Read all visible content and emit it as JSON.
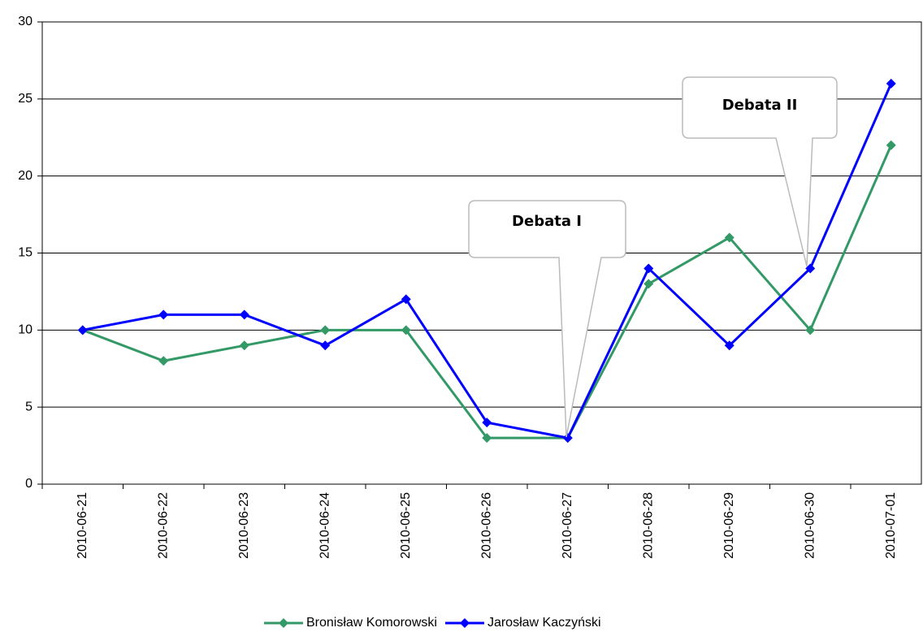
{
  "chart_data": {
    "type": "line",
    "categories": [
      "2010-06-21",
      "2010-06-22",
      "2010-06-23",
      "2010-06-24",
      "2010-06-25",
      "2010-06-26",
      "2010-06-27",
      "2010-06-28",
      "2010-06-29",
      "2010-06-30",
      "2010-07-01"
    ],
    "series": [
      {
        "name": "Bronisław Komorowski",
        "color": "#339966",
        "values": [
          10,
          8,
          9,
          10,
          10,
          3,
          3,
          13,
          16,
          10,
          22
        ]
      },
      {
        "name": "Jarosław Kaczyński",
        "color": "#0000ff",
        "values": [
          10,
          11,
          11,
          9,
          12,
          4,
          3,
          14,
          9,
          14,
          26
        ]
      }
    ],
    "ylim": [
      0,
      30
    ],
    "yticks": [
      0,
      5,
      10,
      15,
      20,
      25,
      30
    ],
    "grid": true,
    "legend": "bottom",
    "annotations": [
      {
        "text": "Debata I"
      },
      {
        "text": "Debata II"
      }
    ]
  }
}
